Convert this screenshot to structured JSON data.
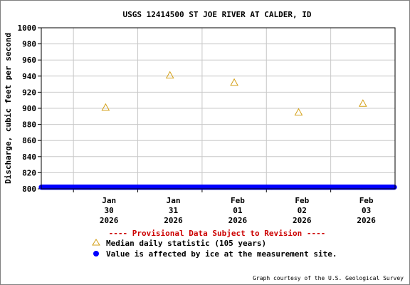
{
  "chart_data": {
    "type": "scatter",
    "title": "USGS 12414500 ST JOE RIVER AT CALDER, ID",
    "ylabel": "Discharge, cubic feet per second",
    "xlabel": "",
    "ylim": [
      800,
      1000
    ],
    "yticks": [
      800,
      820,
      840,
      860,
      880,
      900,
      920,
      940,
      960,
      980,
      1000
    ],
    "xlim": [
      "2026-01-29T12:00",
      "2026-02-04T00:00"
    ],
    "xticks": [
      {
        "date": "2026-01-30",
        "label": [
          "Jan",
          "30",
          "2026"
        ]
      },
      {
        "date": "2026-01-31",
        "label": [
          "Jan",
          "31",
          "2026"
        ]
      },
      {
        "date": "2026-02-01",
        "label": [
          "Feb",
          "01",
          "2026"
        ]
      },
      {
        "date": "2026-02-02",
        "label": [
          "Feb",
          "02",
          "2026"
        ]
      },
      {
        "date": "2026-02-03",
        "label": [
          "Feb",
          "03",
          "2026"
        ]
      }
    ],
    "grid": true,
    "series": [
      {
        "name": "Median daily statistic (105 years)",
        "marker": "triangle-open",
        "color": "#D4A017",
        "points": [
          {
            "x": "2026-01-30T12:00",
            "y": 901
          },
          {
            "x": "2026-01-31T12:00",
            "y": 941
          },
          {
            "x": "2026-02-01T12:00",
            "y": 932
          },
          {
            "x": "2026-02-02T12:00",
            "y": 895
          },
          {
            "x": "2026-02-03T12:00",
            "y": 906
          }
        ]
      },
      {
        "name": "Value is affected by ice at the measurement site.",
        "marker": "dot",
        "color": "#0000FF",
        "x_start": "2026-01-29T12:00",
        "x_end": "2026-02-03T23:45",
        "interval_minutes": 15,
        "y": 802
      }
    ],
    "annotations": {
      "provisional": "---- Provisional Data Subject to Revision ----",
      "provisional_color": "#CC0000",
      "credit": "Graph courtesy of the U.S. Geological Survey"
    }
  }
}
